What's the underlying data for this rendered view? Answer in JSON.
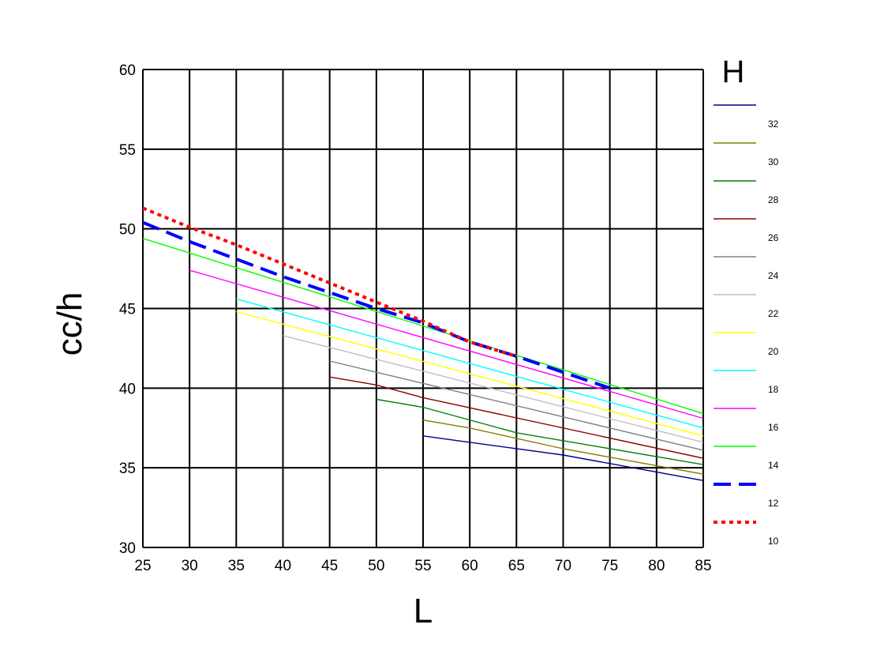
{
  "chart_data": {
    "type": "line",
    "xlabel": "L",
    "ylabel": "cc/h",
    "xlim": [
      25,
      85
    ],
    "ylim": [
      30,
      60
    ],
    "xticks": [
      25,
      30,
      35,
      40,
      45,
      50,
      55,
      60,
      65,
      70,
      75,
      80,
      85
    ],
    "yticks": [
      30,
      35,
      40,
      45,
      50,
      55,
      60
    ],
    "grid": true,
    "legend_title": "H",
    "legend_position": "right",
    "series": [
      {
        "name": "32",
        "color": "#00008b",
        "style": "solid",
        "x": [
          55,
          60,
          70,
          85
        ],
        "y": [
          37.0,
          36.6,
          35.8,
          34.2
        ]
      },
      {
        "name": "30",
        "color": "#808000",
        "style": "solid",
        "x": [
          55,
          60,
          70,
          85
        ],
        "y": [
          38.0,
          37.5,
          36.2,
          34.6
        ]
      },
      {
        "name": "28",
        "color": "#008000",
        "style": "solid",
        "x": [
          50,
          55,
          65,
          85
        ],
        "y": [
          39.3,
          38.8,
          37.2,
          35.2
        ]
      },
      {
        "name": "26",
        "color": "#8b0000",
        "style": "solid",
        "x": [
          45,
          50,
          55,
          85
        ],
        "y": [
          40.7,
          40.2,
          39.4,
          35.6
        ]
      },
      {
        "name": "24",
        "color": "#808080",
        "style": "solid",
        "x": [
          45,
          50,
          85
        ],
        "y": [
          41.7,
          41.0,
          36.1
        ]
      },
      {
        "name": "22",
        "color": "#c0c0c0",
        "style": "solid",
        "x": [
          40,
          85
        ],
        "y": [
          43.3,
          36.6
        ]
      },
      {
        "name": "20",
        "color": "#ffff00",
        "style": "solid",
        "x": [
          35,
          85
        ],
        "y": [
          44.8,
          37.0
        ]
      },
      {
        "name": "18",
        "color": "#00ffff",
        "style": "solid",
        "x": [
          35,
          85
        ],
        "y": [
          45.6,
          37.5
        ]
      },
      {
        "name": "16",
        "color": "#ff00ff",
        "style": "solid",
        "x": [
          30,
          85
        ],
        "y": [
          47.4,
          38.1
        ]
      },
      {
        "name": "14",
        "color": "#00ff00",
        "style": "solid",
        "x": [
          25,
          85
        ],
        "y": [
          49.4,
          38.4
        ]
      },
      {
        "name": "12",
        "color": "#0000ff",
        "style": "dashed",
        "x": [
          25,
          30,
          40,
          45,
          50,
          55,
          60,
          65,
          70,
          75
        ],
        "y": [
          50.4,
          49.2,
          47.0,
          46.0,
          45.0,
          44.1,
          42.9,
          42.0,
          41.0,
          40.0
        ]
      },
      {
        "name": "10",
        "color": "#ff0000",
        "style": "dotted",
        "x": [
          25,
          30,
          35,
          40,
          45,
          50,
          55,
          60,
          65
        ],
        "y": [
          51.3,
          50.1,
          49.0,
          47.8,
          46.6,
          45.4,
          44.2,
          42.9,
          42.0
        ]
      }
    ]
  }
}
